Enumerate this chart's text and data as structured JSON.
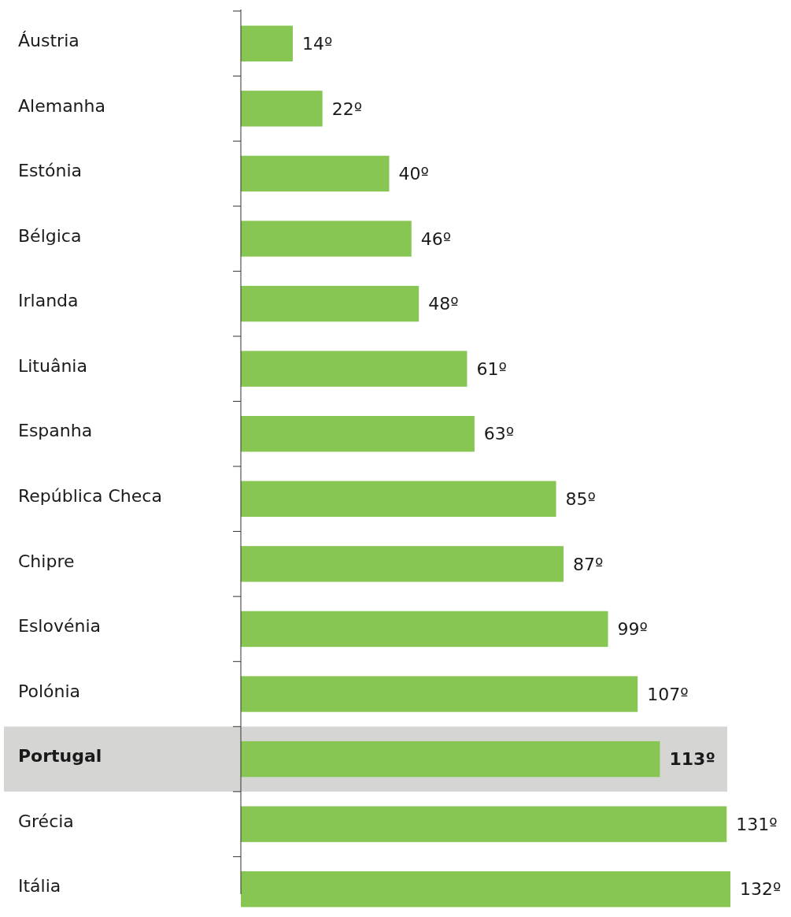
{
  "chart_data": {
    "type": "bar",
    "orientation": "horizontal",
    "categories": [
      "Áustria",
      "Alemanha",
      "Estónia",
      "Bélgica",
      "Irlanda",
      "Lituânia",
      "Espanha",
      "República Checa",
      "Chipre",
      "Eslovénia",
      "Polónia",
      "Portugal",
      "Grécia",
      "Itália"
    ],
    "values": [
      14,
      22,
      40,
      46,
      48,
      61,
      63,
      85,
      87,
      99,
      107,
      113,
      131,
      132
    ],
    "value_labels": [
      "14º",
      "22º",
      "40º",
      "46º",
      "48º",
      "61º",
      "63º",
      "85º",
      "87º",
      "99º",
      "107º",
      "113º",
      "131º",
      "132º"
    ],
    "color": "#88c653",
    "bands": [
      {
        "axis": "y",
        "from": "Portugal",
        "to": "Portugal",
        "color": "#d5d6d4"
      }
    ]
  }
}
